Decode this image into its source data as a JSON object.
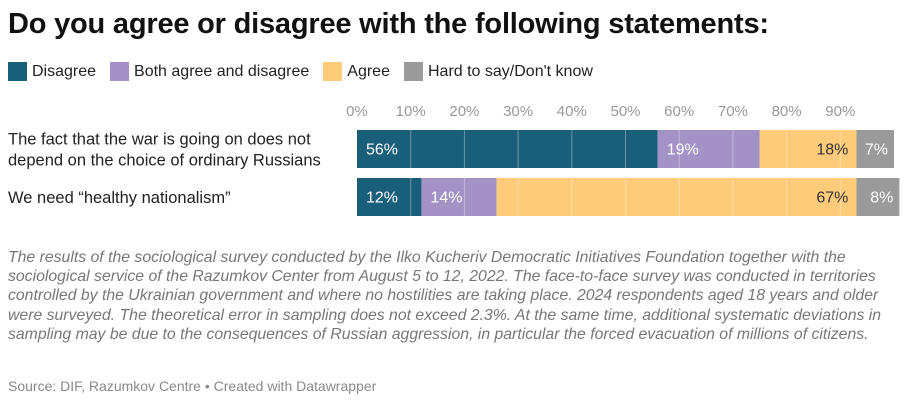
{
  "title": "Do you agree or disagree with the following statements:",
  "legend": [
    {
      "label": "Disagree",
      "color": "#1a5f7a"
    },
    {
      "label": "Both agree and disagree",
      "color": "#a292c6"
    },
    {
      "label": "Agree",
      "color": "#fecb7a"
    },
    {
      "label": "Hard to say/Don't know",
      "color": "#9a9a9a"
    }
  ],
  "chart_data": {
    "type": "bar",
    "orientation": "horizontal",
    "stacked": true,
    "xlim": [
      0,
      100
    ],
    "ticks": [
      "0%",
      "10%",
      "20%",
      "30%",
      "40%",
      "50%",
      "60%",
      "70%",
      "80%",
      "90%"
    ],
    "tick_values": [
      0,
      10,
      20,
      30,
      40,
      50,
      60,
      70,
      80,
      90
    ],
    "categories": [
      [
        "The fact that the war is going on does not",
        "depend on the choice of ordinary Russians"
      ],
      [
        "We need “healthy nationalism”"
      ]
    ],
    "series": [
      {
        "name": "Disagree",
        "values": [
          56,
          12
        ],
        "labels": [
          "56%",
          "12%"
        ],
        "color": "#1a5f7a",
        "label_color": "#ffffff"
      },
      {
        "name": "Both agree and disagree",
        "values": [
          19,
          14
        ],
        "labels": [
          "19%",
          "14%"
        ],
        "color": "#a292c6",
        "label_color": "#ffffff"
      },
      {
        "name": "Agree",
        "values": [
          18,
          67
        ],
        "labels": [
          "18%",
          "67%"
        ],
        "color": "#fecb7a",
        "label_color": "#333333"
      },
      {
        "name": "Hard to say/Don't know",
        "values": [
          7,
          8
        ],
        "labels": [
          "7%",
          "8%"
        ],
        "color": "#9a9a9a",
        "label_color": "#ffffff"
      }
    ]
  },
  "note": "The results of the sociological survey conducted by the Ilko Kucheriv Democratic Initiatives Foundation together with the sociological service of the Razumkov Center from August 5 to 12, 2022. The face-to-face survey was conducted in territories controlled by the Ukrainian government and where no hostilities are taking place. 2024 respondents aged 18 years and older were surveyed. The theoretical error in sampling does not exceed 2.3%. At the same time, additional systematic deviations in sampling may be due to the consequences of Russian aggression, in particular the forced evacuation of millions of citizens.",
  "source": "Source: DIF, Razumkov Centre • Created with Datawrapper"
}
